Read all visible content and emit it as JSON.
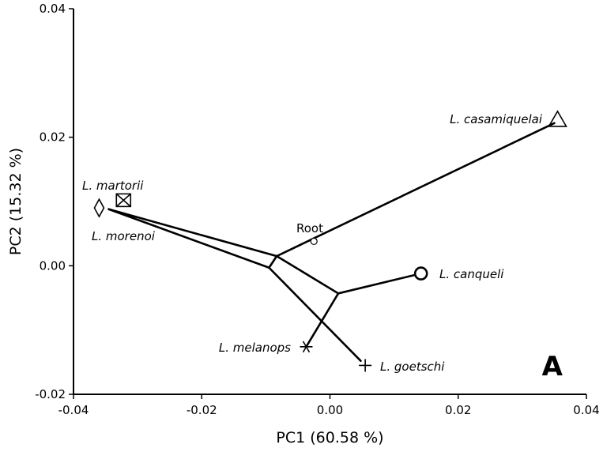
{
  "chart_data": {
    "type": "scatter",
    "subtype": "phylomorphospace",
    "xlabel": "PC1 (60.58 %)",
    "ylabel": "PC2 (15.32 %)",
    "xlim": [
      -0.04,
      0.04
    ],
    "ylim": [
      -0.02,
      0.04
    ],
    "xticks": [
      -0.04,
      -0.02,
      0.0,
      0.02,
      0.04
    ],
    "xtick_labels": [
      "-0.04",
      "-0.02",
      "0.00",
      "0.02",
      "0.04"
    ],
    "yticks": [
      -0.02,
      0.0,
      0.02,
      0.04
    ],
    "ytick_labels": [
      "-0.02",
      "0.00",
      "0.02",
      "0.04"
    ],
    "grid": false,
    "panel_label": "A",
    "root": {
      "label": "Root",
      "x": -0.0025,
      "y": 0.0038,
      "marker": "small-circle"
    },
    "nodes": [
      {
        "id": "n1",
        "x": -0.0083,
        "y": 0.0015
      },
      {
        "id": "n2",
        "x": -0.0095,
        "y": -0.0003
      },
      {
        "id": "n3",
        "x": 0.0013,
        "y": -0.0043
      }
    ],
    "tips": [
      {
        "id": "casamiquelai",
        "label": "L. casamiquelai",
        "x": 0.0355,
        "y": 0.0228,
        "marker": "triangle"
      },
      {
        "id": "martorii",
        "label": "L. martorii",
        "x": -0.0322,
        "y": 0.0102,
        "marker": "boxed-x"
      },
      {
        "id": "morenoi",
        "label": "L. morenoi",
        "x": -0.036,
        "y": 0.009,
        "marker": "diamond"
      },
      {
        "id": "canqueli",
        "label": "L. canqueli",
        "x": 0.0142,
        "y": -0.0012,
        "marker": "open-circle"
      },
      {
        "id": "melanops",
        "label": "L. melanops",
        "x": -0.0037,
        "y": -0.0126,
        "marker": "asterisk"
      },
      {
        "id": "goetschi",
        "label": "L. goetschi",
        "x": 0.0055,
        "y": -0.0155,
        "marker": "plus"
      }
    ],
    "branches": [
      {
        "from": [
          -0.0083,
          0.0015
        ],
        "to": [
          0.035,
          0.0222
        ]
      },
      {
        "from": [
          -0.0083,
          0.0015
        ],
        "to": [
          -0.0095,
          -0.0003
        ]
      },
      {
        "from": [
          -0.0083,
          0.0015
        ],
        "to": [
          0.0013,
          -0.0043
        ]
      },
      {
        "from": [
          -0.0083,
          0.0015
        ],
        "to": [
          -0.0345,
          0.0088
        ]
      },
      {
        "from": [
          -0.0095,
          -0.0003
        ],
        "to": [
          -0.0345,
          0.0088
        ]
      },
      {
        "from": [
          -0.0095,
          -0.0003
        ],
        "to": [
          0.0048,
          -0.0148
        ]
      },
      {
        "from": [
          0.0013,
          -0.0043
        ],
        "to": [
          0.0142,
          -0.0012
        ]
      },
      {
        "from": [
          0.0013,
          -0.0043
        ],
        "to": [
          -0.0037,
          -0.0126
        ]
      }
    ]
  }
}
